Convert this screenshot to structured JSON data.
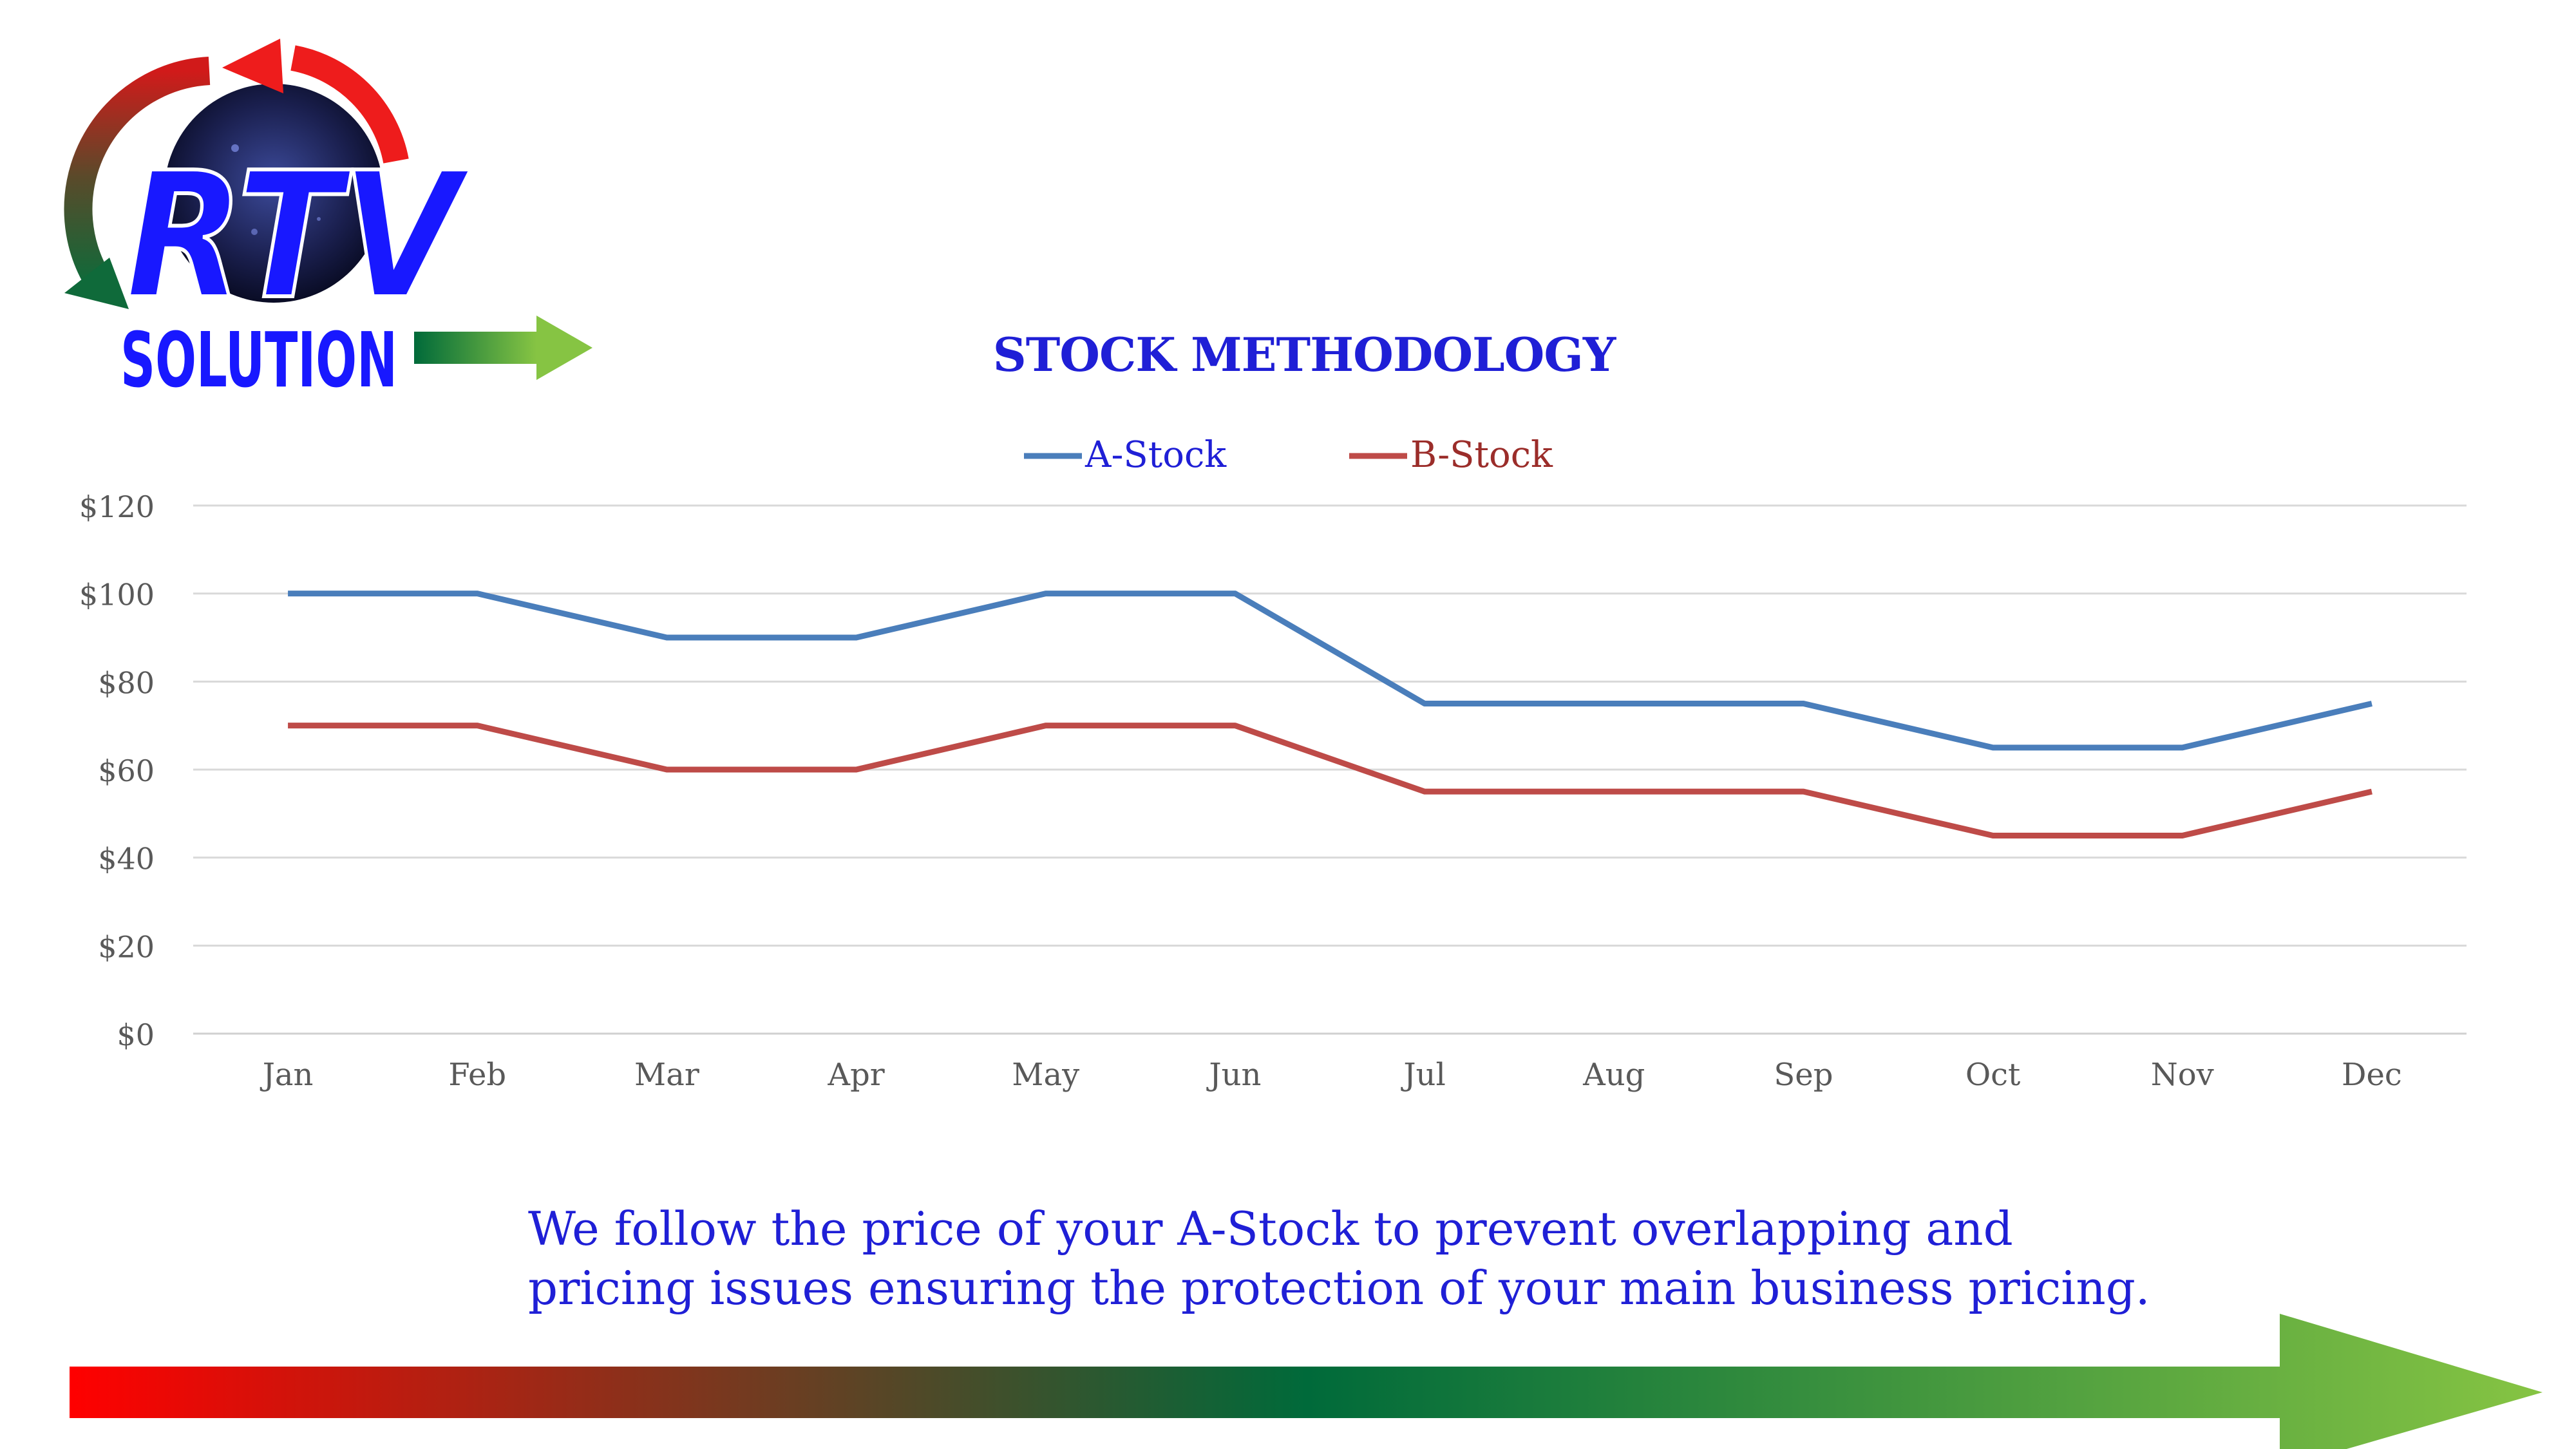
{
  "logo": {
    "top_text": "RTV",
    "bottom_text": "SOLUTION"
  },
  "chart_data": {
    "type": "line",
    "title": "STOCK METHODOLOGY",
    "categories": [
      "Jan",
      "Feb",
      "Mar",
      "Apr",
      "May",
      "Jun",
      "Jul",
      "Aug",
      "Sep",
      "Oct",
      "Nov",
      "Dec"
    ],
    "series": [
      {
        "name": "A-Stock",
        "color": "#4a7ebb",
        "values": [
          100,
          100,
          90,
          90,
          100,
          100,
          75,
          75,
          75,
          65,
          65,
          75
        ]
      },
      {
        "name": "B-Stock",
        "color": "#be4b48",
        "values": [
          70,
          70,
          60,
          60,
          70,
          70,
          55,
          55,
          55,
          45,
          45,
          55
        ]
      }
    ],
    "y_ticks": [
      "$0",
      "$20",
      "$40",
      "$60",
      "$80",
      "$100",
      "$120"
    ],
    "ylim": [
      0,
      120
    ],
    "xlabel": "",
    "ylabel": "",
    "grid": true,
    "legend_position": "top"
  },
  "caption": {
    "line1": "We follow the price of your A-Stock to prevent overlapping and",
    "line2": "pricing issues ensuring the protection of your main business pricing."
  },
  "colors": {
    "title_blue": "#1f1fd6",
    "arrow_start": "#ff0000",
    "arrow_mid": "#006a3a",
    "arrow_end": "#86c443"
  }
}
